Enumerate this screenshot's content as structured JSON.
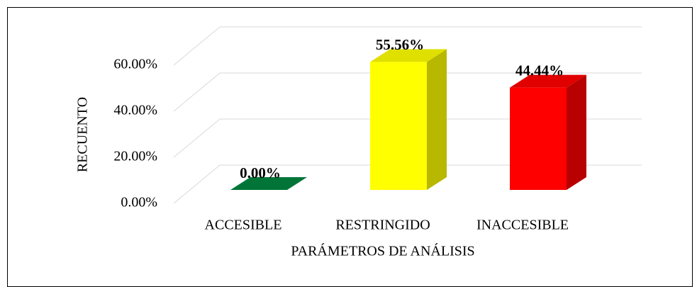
{
  "chart_data": {
    "type": "bar3d",
    "categories": [
      "ACCESIBLE",
      "RESTRINGIDO",
      "INACCESIBLE"
    ],
    "values": [
      0,
      55.56,
      44.44
    ],
    "value_labels": [
      "0.00%",
      "55.56%",
      "44.44%"
    ],
    "colors": [
      "#00853f",
      "#ffff00",
      "#ff0000"
    ],
    "ylim": [
      0,
      60
    ],
    "yticks": [
      {
        "value": 0,
        "label": "0.00%"
      },
      {
        "value": 20,
        "label": "20.00%"
      },
      {
        "value": 40,
        "label": "40.00%"
      },
      {
        "value": 60,
        "label": "60.00%"
      }
    ],
    "ylabel": "RECUENTO",
    "xlabel": "PARÁMETROS DE ANÁLISIS",
    "grid": true
  }
}
